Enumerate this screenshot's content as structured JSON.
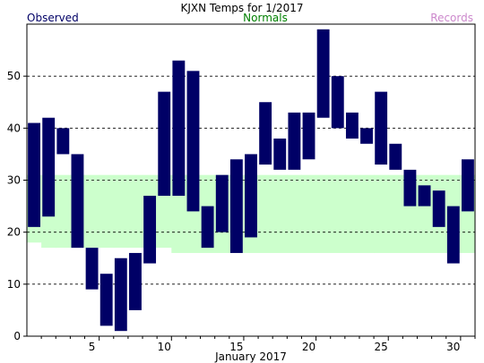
{
  "chart_data": {
    "type": "bar",
    "title": "KJXN Temps for 1/2017",
    "xlabel": "January 2017",
    "ylabel": "",
    "legend": [
      "Observed",
      "Normals",
      "Records"
    ],
    "legend_placement": "top",
    "colors": {
      "observed": "#000066",
      "normals_band": "#ccffcc",
      "observed_legend": "#000066",
      "normals_legend": "#008000",
      "records_legend": "#cc88cc"
    },
    "ylim": [
      0,
      60
    ],
    "yticks": [
      0,
      10,
      20,
      30,
      40,
      50
    ],
    "xlim": [
      0.5,
      31.5
    ],
    "xticks": [
      5,
      10,
      15,
      20,
      25,
      30
    ],
    "grid": true,
    "days": [
      1,
      2,
      3,
      4,
      5,
      6,
      7,
      8,
      9,
      10,
      11,
      12,
      13,
      14,
      15,
      16,
      17,
      18,
      19,
      20,
      21,
      22,
      23,
      24,
      25,
      26,
      27,
      28,
      29,
      30,
      31
    ],
    "observed_low": [
      21,
      23,
      35,
      17,
      9,
      2,
      1,
      5,
      14,
      27,
      27,
      24,
      17,
      20,
      16,
      19,
      33,
      32,
      32,
      34,
      42,
      40,
      38,
      37,
      33,
      32,
      25,
      25,
      21,
      14,
      24
    ],
    "observed_high": [
      41,
      42,
      40,
      35,
      17,
      12,
      15,
      16,
      27,
      47,
      53,
      51,
      25,
      31,
      34,
      35,
      45,
      38,
      43,
      43,
      59,
      50,
      43,
      40,
      47,
      37,
      32,
      29,
      28,
      25,
      34
    ],
    "normal_low": [
      18,
      17,
      17,
      17,
      17,
      17,
      17,
      17,
      17,
      17,
      16,
      16,
      16,
      16,
      16,
      16,
      16,
      16,
      16,
      16,
      16,
      16,
      16,
      16,
      16,
      16,
      16,
      16,
      16,
      16,
      16
    ],
    "normal_high": [
      31,
      31,
      31,
      31,
      31,
      31,
      31,
      31,
      31,
      31,
      31,
      31,
      31,
      31,
      31,
      31,
      31,
      31,
      31,
      31,
      31,
      31,
      31,
      31,
      31,
      31,
      31,
      31,
      31,
      31,
      31
    ]
  }
}
